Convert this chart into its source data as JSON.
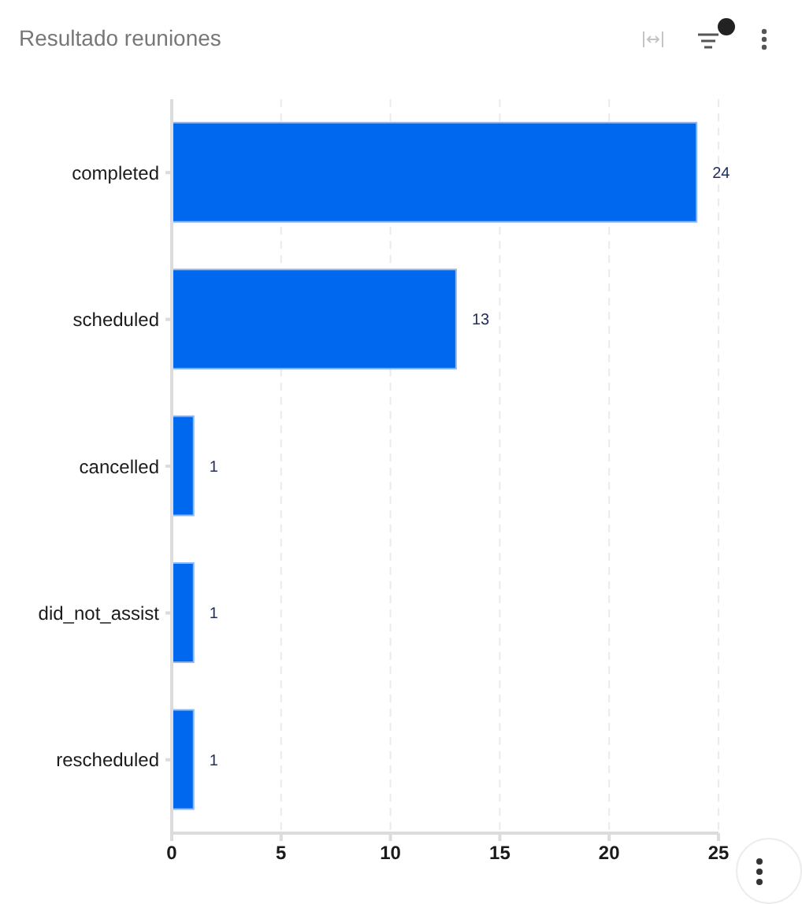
{
  "chart_data": {
    "type": "bar",
    "orientation": "horizontal",
    "title": "Resultado reuniones",
    "categories": [
      "completed",
      "scheduled",
      "cancelled",
      "did_not_assist",
      "rescheduled"
    ],
    "values": [
      24,
      13,
      1,
      1,
      1
    ],
    "color": "#0068ee",
    "xlim": [
      0,
      25
    ],
    "xticks": [
      0,
      5,
      10,
      15,
      20,
      25
    ],
    "grid": "x",
    "data_labels": true
  }
}
